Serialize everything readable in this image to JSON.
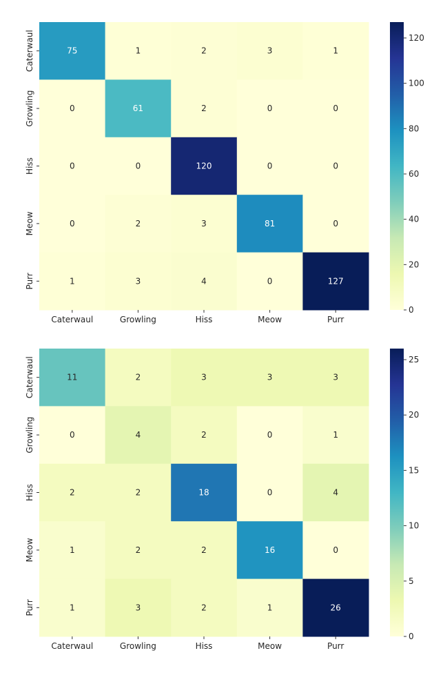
{
  "chart_data": [
    {
      "type": "heatmap",
      "row_labels": [
        "Caterwaul",
        "Growling",
        "Hiss",
        "Meow",
        "Purr"
      ],
      "col_labels": [
        "Caterwaul",
        "Growling",
        "Hiss",
        "Meow",
        "Purr"
      ],
      "values": [
        [
          75,
          1,
          2,
          3,
          1
        ],
        [
          0,
          61,
          2,
          0,
          0
        ],
        [
          0,
          0,
          120,
          0,
          0
        ],
        [
          0,
          2,
          3,
          81,
          0
        ],
        [
          1,
          3,
          4,
          0,
          127
        ]
      ],
      "colorbar": {
        "range": [
          0,
          127
        ],
        "ticks": [
          0,
          20,
          40,
          60,
          80,
          100,
          120
        ]
      },
      "colormap": "YlGnBu"
    },
    {
      "type": "heatmap",
      "row_labels": [
        "Caterwaul",
        "Growling",
        "Hiss",
        "Meow",
        "Purr"
      ],
      "col_labels": [
        "Caterwaul",
        "Growling",
        "Hiss",
        "Meow",
        "Purr"
      ],
      "values": [
        [
          11,
          2,
          3,
          3,
          3
        ],
        [
          0,
          4,
          2,
          0,
          1
        ],
        [
          2,
          2,
          18,
          0,
          4
        ],
        [
          1,
          2,
          2,
          16,
          0
        ],
        [
          1,
          3,
          2,
          1,
          26
        ]
      ],
      "colorbar": {
        "range": [
          0,
          26
        ],
        "ticks": [
          0,
          5,
          10,
          15,
          20,
          25
        ]
      },
      "colormap": "YlGnBu"
    }
  ]
}
